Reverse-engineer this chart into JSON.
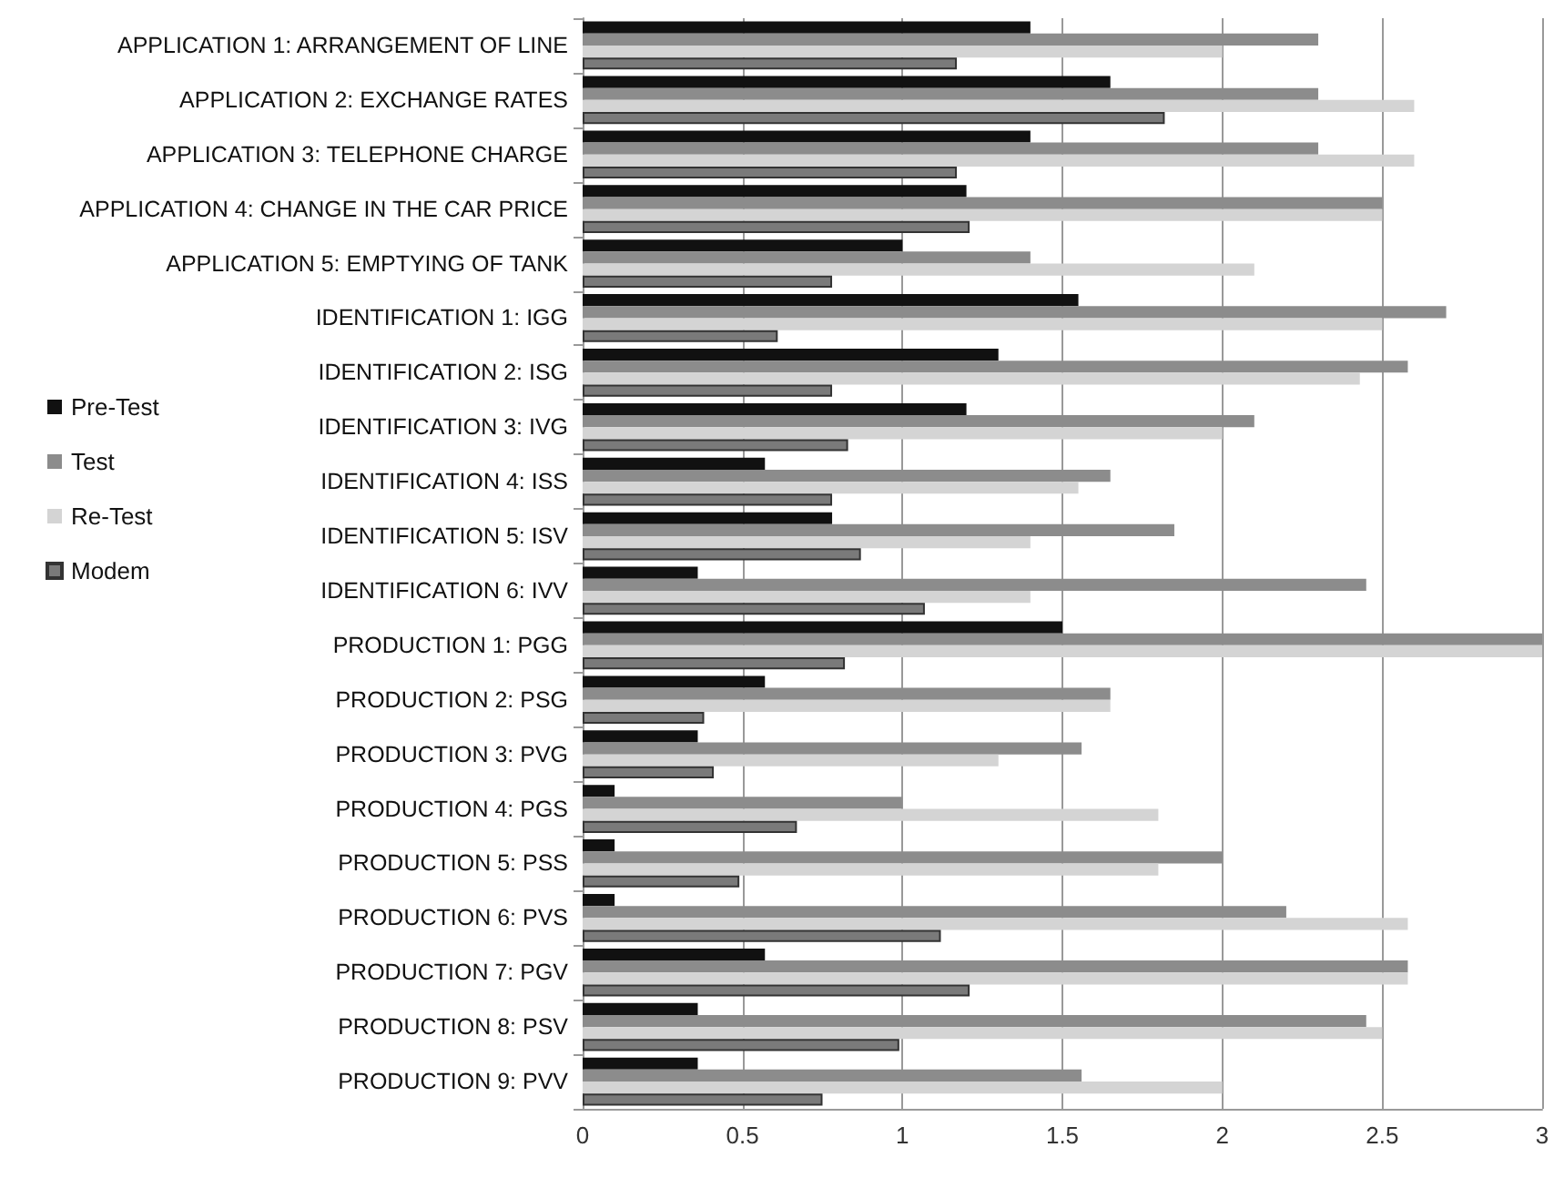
{
  "chart_data": {
    "type": "bar",
    "orientation": "horizontal",
    "categories": [
      "APPLICATION 1: ARRANGEMENT OF LINE",
      "APPLICATION 2: EXCHANGE RATES",
      "APPLICATION 3: TELEPHONE CHARGE",
      "APPLICATION 4: CHANGE IN THE CAR PRICE",
      "APPLICATION 5: EMPTYING OF TANK",
      "IDENTIFICATION 1: IGG",
      "IDENTIFICATION 2: ISG",
      "IDENTIFICATION 3: IVG",
      "IDENTIFICATION 4: ISS",
      "IDENTIFICATION 5: ISV",
      "IDENTIFICATION 6: IVV",
      "PRODUCTION 1: PGG",
      "PRODUCTION 2: PSG",
      "PRODUCTION 3: PVG",
      "PRODUCTION 4: PGS",
      "PRODUCTION 5: PSS",
      "PRODUCTION 6: PVS",
      "PRODUCTION 7: PGV",
      "PRODUCTION 8: PSV",
      "PRODUCTION 9: PVV"
    ],
    "series": [
      {
        "name": "Pre-Test",
        "color": "#111111",
        "values": [
          1.4,
          1.65,
          1.4,
          1.2,
          1.0,
          1.55,
          1.3,
          1.2,
          0.57,
          0.78,
          0.36,
          1.5,
          0.57,
          0.36,
          0.1,
          0.1,
          0.1,
          0.57,
          0.36,
          0.36
        ]
      },
      {
        "name": "Test",
        "color": "#8c8c8c",
        "values": [
          2.3,
          2.3,
          2.3,
          2.5,
          1.4,
          2.7,
          2.58,
          2.1,
          1.65,
          1.85,
          2.45,
          3.0,
          1.65,
          1.56,
          1.0,
          2.0,
          2.2,
          2.58,
          2.45,
          1.56
        ]
      },
      {
        "name": "Re-Test",
        "color": "#d4d4d4",
        "values": [
          2.0,
          2.6,
          2.6,
          2.5,
          2.1,
          2.5,
          2.43,
          2.0,
          1.55,
          1.4,
          1.4,
          3.0,
          1.65,
          1.3,
          1.8,
          1.8,
          2.58,
          2.58,
          2.5,
          2.0
        ]
      },
      {
        "name": "Modem",
        "color": "#7a7a7a",
        "values": [
          1.17,
          1.82,
          1.17,
          1.21,
          0.78,
          0.61,
          0.78,
          0.83,
          0.78,
          0.87,
          1.07,
          0.82,
          0.38,
          0.41,
          0.67,
          0.49,
          1.12,
          1.21,
          0.99,
          0.75
        ]
      }
    ],
    "xlim": [
      0,
      3
    ],
    "xticks": [
      0,
      0.5,
      1,
      1.5,
      2,
      2.5,
      3
    ],
    "grid": "x",
    "legend": "left"
  }
}
